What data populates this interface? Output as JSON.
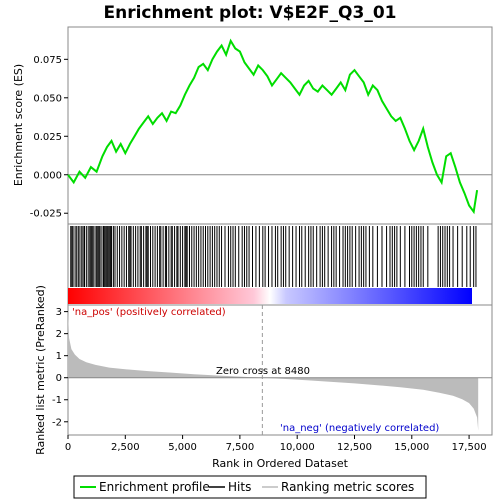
{
  "chart_data": {
    "type": "line",
    "title": "Enrichment plot: V$E2F_Q3_01",
    "xlabel": "Rank in Ordered Dataset",
    "xlim": [
      0,
      18500
    ],
    "x_ticks": [
      "0",
      "2,500",
      "5,000",
      "7,500",
      "10,000",
      "12,500",
      "15,000",
      "17,500"
    ],
    "x_tick_values": [
      0,
      2500,
      5000,
      7500,
      10000,
      12500,
      15000,
      17500
    ],
    "panels": {
      "enrichment": {
        "ylabel": "Enrichment score (ES)",
        "ylim": [
          -0.032,
          0.096
        ],
        "y_ticks": [
          "-0.025",
          "0.000",
          "0.025",
          "0.050",
          "0.075"
        ],
        "y_tick_values": [
          -0.025,
          0.0,
          0.025,
          0.05,
          0.075
        ],
        "series": [
          {
            "name": "Enrichment profile",
            "color": "#00dd00",
            "x": [
              0,
              250,
              500,
              750,
              1000,
              1250,
              1500,
              1700,
              1900,
              2100,
              2300,
              2500,
              2700,
              2900,
              3100,
              3300,
              3500,
              3700,
              3900,
              4100,
              4300,
              4500,
              4700,
              4900,
              5100,
              5300,
              5500,
              5700,
              5900,
              6100,
              6300,
              6500,
              6700,
              6900,
              7100,
              7300,
              7500,
              7700,
              7900,
              8100,
              8300,
              8500,
              8700,
              8900,
              9100,
              9300,
              9500,
              9700,
              9900,
              10100,
              10300,
              10500,
              10700,
              10900,
              11100,
              11300,
              11500,
              11700,
              11900,
              12100,
              12300,
              12500,
              12700,
              12900,
              13100,
              13300,
              13500,
              13700,
              13900,
              14100,
              14300,
              14500,
              14700,
              14900,
              15100,
              15300,
              15500,
              15700,
              15900,
              16100,
              16300,
              16500,
              16700,
              16900,
              17100,
              17300,
              17500,
              17700,
              17850
            ],
            "y": [
              0.0,
              -0.005,
              0.002,
              -0.002,
              0.005,
              0.002,
              0.012,
              0.018,
              0.022,
              0.015,
              0.02,
              0.014,
              0.02,
              0.025,
              0.03,
              0.034,
              0.038,
              0.033,
              0.037,
              0.04,
              0.035,
              0.041,
              0.04,
              0.045,
              0.052,
              0.058,
              0.063,
              0.07,
              0.072,
              0.068,
              0.075,
              0.08,
              0.084,
              0.078,
              0.087,
              0.082,
              0.08,
              0.073,
              0.069,
              0.065,
              0.071,
              0.068,
              0.064,
              0.058,
              0.062,
              0.066,
              0.063,
              0.06,
              0.056,
              0.052,
              0.058,
              0.061,
              0.056,
              0.054,
              0.058,
              0.055,
              0.052,
              0.056,
              0.06,
              0.055,
              0.065,
              0.068,
              0.064,
              0.06,
              0.052,
              0.058,
              0.055,
              0.048,
              0.043,
              0.038,
              0.035,
              0.037,
              0.03,
              0.022,
              0.016,
              0.022,
              0.03,
              0.018,
              0.008,
              0.0,
              -0.005,
              0.012,
              0.014,
              0.005,
              -0.005,
              -0.012,
              -0.02,
              -0.024,
              -0.01
            ]
          }
        ]
      },
      "hits": {
        "label": "Hits",
        "positions": [
          120,
          170,
          220,
          310,
          380,
          450,
          520,
          600,
          660,
          720,
          800,
          880,
          950,
          1000,
          1050,
          1100,
          1180,
          1250,
          1300,
          1350,
          1400,
          1480,
          1550,
          1600,
          1650,
          1700,
          1750,
          1800,
          1850,
          1900,
          1980,
          2050,
          2150,
          2250,
          2350,
          2450,
          2550,
          2650,
          2700,
          2750,
          2850,
          2950,
          3050,
          3150,
          3200,
          3300,
          3400,
          3450,
          3500,
          3600,
          3700,
          3800,
          3900,
          4000,
          4050,
          4150,
          4250,
          4300,
          4400,
          4500,
          4550,
          4650,
          4750,
          4800,
          4900,
          5000,
          5100,
          5150,
          5200,
          5300,
          5400,
          5500,
          5600,
          5700,
          5800,
          5900,
          6000,
          6100,
          6200,
          6300,
          6400,
          6500,
          6600,
          6700,
          6850,
          7000,
          7100,
          7200,
          7300,
          7450,
          7600,
          7700,
          7800,
          7900,
          8050,
          8200,
          8350,
          8500,
          8600,
          8750,
          8900,
          9050,
          9150,
          9300,
          9400,
          9500,
          9650,
          9800,
          9950,
          10100,
          10200,
          10350,
          10500,
          10600,
          10700,
          10850,
          11000,
          11100,
          11200,
          11350,
          11500,
          11600,
          11700,
          11850,
          12000,
          12100,
          12200,
          12300,
          12400,
          12550,
          12700,
          12800,
          12900,
          13000,
          13150,
          13300,
          13500,
          13700,
          13900,
          14050,
          14150,
          14250,
          14350,
          14500,
          14700,
          14900,
          15000,
          15100,
          15200,
          15300,
          15400,
          15500,
          15700,
          16150,
          16250,
          16350,
          16450,
          16550,
          16650,
          16800,
          17000,
          17200,
          17400,
          17550,
          17700,
          17800
        ]
      },
      "ranked_metric": {
        "ylabel": "Ranked list metric (PreRanked)",
        "ylim": [
          -2.6,
          3.3
        ],
        "y_ticks": [
          "-2",
          "-1",
          "0",
          "1",
          "2",
          "3"
        ],
        "y_tick_values": [
          -2,
          -1,
          0,
          1,
          2,
          3
        ],
        "x": [
          0,
          50,
          150,
          300,
          500,
          800,
          1200,
          1800,
          2500,
          3500,
          4500,
          5500,
          6500,
          7500,
          8480,
          9500,
          10500,
          11500,
          12500,
          13500,
          14500,
          15500,
          16200,
          16800,
          17200,
          17500,
          17700,
          17850,
          17900
        ],
        "values": [
          3.0,
          1.8,
          1.3,
          1.05,
          0.85,
          0.7,
          0.58,
          0.46,
          0.38,
          0.3,
          0.23,
          0.16,
          0.1,
          0.05,
          0.0,
          -0.06,
          -0.12,
          -0.19,
          -0.26,
          -0.34,
          -0.43,
          -0.55,
          -0.68,
          -0.82,
          -0.98,
          -1.15,
          -1.4,
          -1.8,
          -2.4
        ],
        "fill_color": "#bbbbbb"
      }
    },
    "zero_cross": {
      "label": "Zero cross at 8480",
      "x": 8480
    },
    "annotations": [
      {
        "text": "'na_pos' (positively correlated)",
        "color": "#cc0000"
      },
      {
        "text": "'na_neg' (negatively correlated)",
        "color": "#0000cc"
      }
    ],
    "gradient_colors": [
      "#ff0000",
      "#ffffff",
      "#0000ff"
    ],
    "legend": [
      {
        "label": "Enrichment profile",
        "color": "#00dd00"
      },
      {
        "label": "Hits",
        "color": "#000000"
      },
      {
        "label": "Ranking metric scores",
        "color": "#bbbbbb"
      }
    ],
    "legend_position": "bottom"
  }
}
